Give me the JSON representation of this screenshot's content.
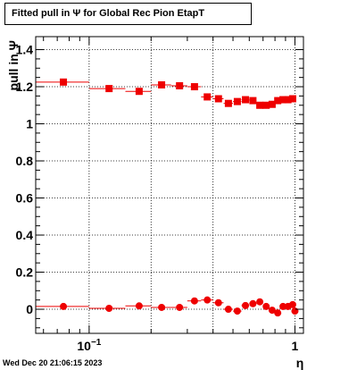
{
  "header": {
    "title": "Fitted pull in  Ψ  for Global Rec Pion EtapT"
  },
  "footer": {
    "datestamp": "Wed Dec 20 21:06:15 2023"
  },
  "chart_data": {
    "type": "scatter",
    "title": "Fitted pull in  Ψ  for Global Rec Pion EtapT",
    "xlabel": "η",
    "ylabel": "pull in  Ψ",
    "xscale": "log",
    "xlim": [
      0.055,
      1.1
    ],
    "ylim": [
      -0.13,
      1.47
    ],
    "grid": true,
    "x_tick_labels": [
      {
        "value": 0.1,
        "base": "10",
        "exp": "−1"
      },
      {
        "value": 1,
        "base": "1",
        "exp": ""
      }
    ],
    "y_tick_labels": [
      "0",
      "0.2",
      "0.4",
      "0.6",
      "0.8",
      "1",
      "1.2",
      "1.4"
    ],
    "y_tick_values": [
      0,
      0.2,
      0.4,
      0.6,
      0.8,
      1.0,
      1.2,
      1.4
    ],
    "series": [
      {
        "marker": "square",
        "color": "#ee0000",
        "points": [
          {
            "x": 0.075,
            "y": 1.225,
            "xlo": 0.05,
            "xhi": 0.1
          },
          {
            "x": 0.125,
            "y": 1.19,
            "xlo": 0.1,
            "xhi": 0.15
          },
          {
            "x": 0.175,
            "y": 1.175,
            "xlo": 0.15,
            "xhi": 0.2
          },
          {
            "x": 0.225,
            "y": 1.21,
            "xlo": 0.2,
            "xhi": 0.25
          },
          {
            "x": 0.275,
            "y": 1.205,
            "xlo": 0.25,
            "xhi": 0.3
          },
          {
            "x": 0.325,
            "y": 1.2,
            "xlo": 0.3,
            "xhi": 0.35
          },
          {
            "x": 0.375,
            "y": 1.145,
            "xlo": 0.35,
            "xhi": 0.4
          },
          {
            "x": 0.425,
            "y": 1.135,
            "xlo": 0.4,
            "xhi": 0.45
          },
          {
            "x": 0.475,
            "y": 1.11,
            "xlo": 0.45,
            "xhi": 0.5
          },
          {
            "x": 0.525,
            "y": 1.12,
            "xlo": 0.5,
            "xhi": 0.55
          },
          {
            "x": 0.575,
            "y": 1.13,
            "xlo": 0.55,
            "xhi": 0.6
          },
          {
            "x": 0.625,
            "y": 1.125,
            "xlo": 0.6,
            "xhi": 0.65
          },
          {
            "x": 0.675,
            "y": 1.1,
            "xlo": 0.65,
            "xhi": 0.7
          },
          {
            "x": 0.725,
            "y": 1.1,
            "xlo": 0.7,
            "xhi": 0.75
          },
          {
            "x": 0.775,
            "y": 1.105,
            "xlo": 0.75,
            "xhi": 0.8
          },
          {
            "x": 0.825,
            "y": 1.125,
            "xlo": 0.8,
            "xhi": 0.85
          },
          {
            "x": 0.875,
            "y": 1.13,
            "xlo": 0.85,
            "xhi": 0.9
          },
          {
            "x": 0.925,
            "y": 1.13,
            "xlo": 0.9,
            "xhi": 0.95
          },
          {
            "x": 0.975,
            "y": 1.135,
            "xlo": 0.95,
            "xhi": 1.0
          }
        ]
      },
      {
        "marker": "circle",
        "color": "#ee0000",
        "points": [
          {
            "x": 0.075,
            "y": 0.015,
            "xlo": 0.05,
            "xhi": 0.1
          },
          {
            "x": 0.125,
            "y": 0.005,
            "xlo": 0.1,
            "xhi": 0.15
          },
          {
            "x": 0.175,
            "y": 0.018,
            "xlo": 0.15,
            "xhi": 0.2
          },
          {
            "x": 0.225,
            "y": 0.01,
            "xlo": 0.2,
            "xhi": 0.25
          },
          {
            "x": 0.275,
            "y": 0.01,
            "xlo": 0.25,
            "xhi": 0.3
          },
          {
            "x": 0.325,
            "y": 0.045,
            "xlo": 0.3,
            "xhi": 0.35
          },
          {
            "x": 0.375,
            "y": 0.05,
            "xlo": 0.35,
            "xhi": 0.4
          },
          {
            "x": 0.425,
            "y": 0.035,
            "xlo": 0.4,
            "xhi": 0.45
          },
          {
            "x": 0.475,
            "y": 0.0,
            "xlo": 0.45,
            "xhi": 0.5
          },
          {
            "x": 0.525,
            "y": -0.01,
            "xlo": 0.5,
            "xhi": 0.55
          },
          {
            "x": 0.575,
            "y": 0.02,
            "xlo": 0.55,
            "xhi": 0.6
          },
          {
            "x": 0.625,
            "y": 0.03,
            "xlo": 0.6,
            "xhi": 0.65
          },
          {
            "x": 0.675,
            "y": 0.04,
            "xlo": 0.65,
            "xhi": 0.7
          },
          {
            "x": 0.725,
            "y": 0.015,
            "xlo": 0.7,
            "xhi": 0.75
          },
          {
            "x": 0.775,
            "y": -0.005,
            "xlo": 0.75,
            "xhi": 0.8
          },
          {
            "x": 0.825,
            "y": -0.02,
            "xlo": 0.8,
            "xhi": 0.85
          },
          {
            "x": 0.875,
            "y": 0.015,
            "xlo": 0.85,
            "xhi": 0.9
          },
          {
            "x": 0.925,
            "y": 0.015,
            "xlo": 0.9,
            "xhi": 0.95
          },
          {
            "x": 0.975,
            "y": 0.025,
            "xlo": 0.95,
            "xhi": 1.0
          },
          {
            "x": 1.0,
            "y": -0.01,
            "xlo": 1.0,
            "xhi": 1.0
          }
        ]
      }
    ]
  }
}
